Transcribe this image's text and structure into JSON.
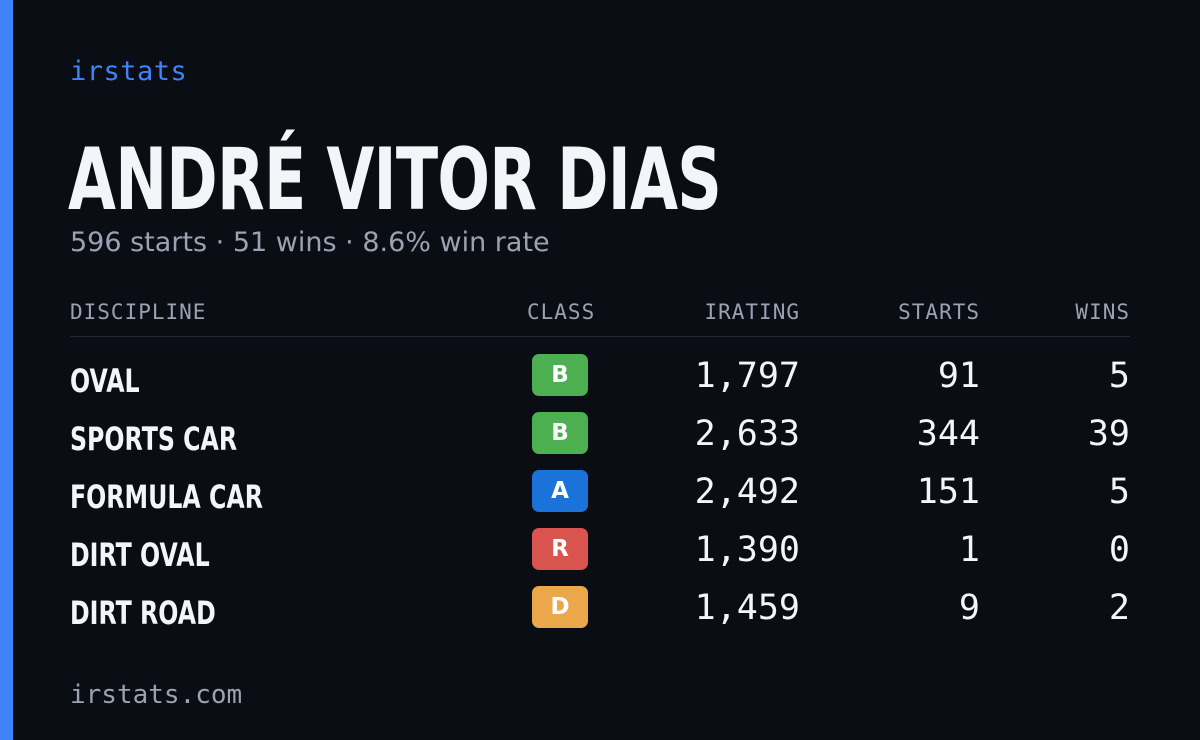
{
  "brand": "irstats",
  "driver": {
    "name": "ANDRÉ VITOR DIAS",
    "starts_text": "596 starts",
    "wins_text": "51 wins",
    "win_rate_text": "8.6% win rate",
    "separator": "·"
  },
  "table": {
    "headers": {
      "discipline": "DISCIPLINE",
      "class": "CLASS",
      "irating": "IRATING",
      "starts": "STARTS",
      "wins": "WINS"
    },
    "rows": [
      {
        "discipline": "OVAL",
        "class": "B",
        "class_color": "#4caf50",
        "irating": "1,797",
        "starts": "91",
        "wins": "5"
      },
      {
        "discipline": "SPORTS CAR",
        "class": "B",
        "class_color": "#4caf50",
        "irating": "2,633",
        "starts": "344",
        "wins": "39"
      },
      {
        "discipline": "FORMULA CAR",
        "class": "A",
        "class_color": "#1b72d8",
        "irating": "2,492",
        "starts": "151",
        "wins": "5"
      },
      {
        "discipline": "DIRT OVAL",
        "class": "R",
        "class_color": "#d9534f",
        "irating": "1,390",
        "starts": "1",
        "wins": "0"
      },
      {
        "discipline": "DIRT ROAD",
        "class": "D",
        "class_color": "#eba84a",
        "irating": "1,459",
        "starts": "9",
        "wins": "2"
      }
    ]
  },
  "footer": "irstats.com",
  "colors": {
    "background": "#0b0d14",
    "accent": "#3f83f8",
    "text_primary": "#f4f5f8",
    "text_muted": "#9aa1b1"
  }
}
